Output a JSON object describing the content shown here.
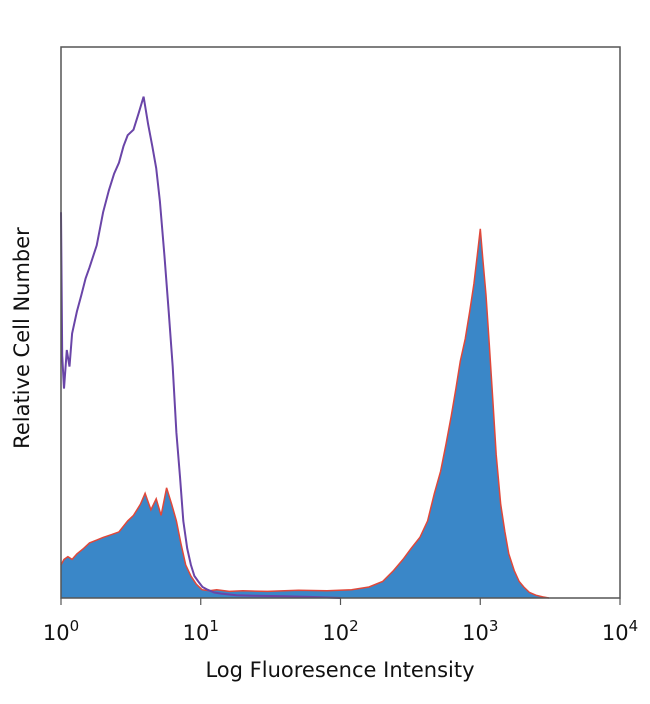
{
  "chart_data": {
    "type": "area",
    "title": "",
    "xlabel": "Log Fluoresence Intensity",
    "ylabel": "Relative Cell Number",
    "x_scale": "log",
    "xlim": [
      1,
      10000
    ],
    "ylim": [
      0,
      100
    ],
    "x_ticks": [
      {
        "base": "10",
        "exp": "0",
        "value": 1
      },
      {
        "base": "10",
        "exp": "1",
        "value": 10
      },
      {
        "base": "10",
        "exp": "2",
        "value": 100
      },
      {
        "base": "10",
        "exp": "3",
        "value": 1000
      },
      {
        "base": "10",
        "exp": "4",
        "value": 10000
      }
    ],
    "grid": false,
    "legend": "none",
    "series": [
      {
        "style": "filled",
        "fill_color": "#3a87c8",
        "outline_color": "#e0483a",
        "x": [
          1,
          1.05,
          1.12,
          1.2,
          1.3,
          1.45,
          1.6,
          1.8,
          2.0,
          2.3,
          2.6,
          3.0,
          3.3,
          3.7,
          4.0,
          4.4,
          4.8,
          5.2,
          5.7,
          6.2,
          6.7,
          7.2,
          7.8,
          8.5,
          9.3,
          10.2,
          11.5,
          13,
          16,
          20,
          30,
          50,
          80,
          120,
          160,
          200,
          240,
          280,
          320,
          370,
          420,
          470,
          520,
          570,
          620,
          670,
          720,
          780,
          840,
          900,
          960,
          1000,
          1040,
          1100,
          1160,
          1230,
          1300,
          1400,
          1500,
          1600,
          1750,
          1900,
          2050,
          2250,
          2500,
          2800,
          3100
        ],
        "y": [
          6,
          7,
          7.5,
          7,
          8,
          9,
          10,
          10.5,
          11,
          11.5,
          12,
          14,
          15,
          17,
          19,
          16,
          18,
          15,
          20,
          17,
          14,
          10,
          6,
          4,
          2.5,
          1.5,
          1.3,
          1.5,
          1.2,
          1.3,
          1.2,
          1.4,
          1.3,
          1.5,
          2,
          3,
          5,
          7,
          9,
          11,
          14,
          19,
          23,
          28,
          33,
          38,
          43,
          47,
          52,
          57,
          63,
          67,
          62,
          55,
          46,
          36,
          26,
          17,
          12,
          8,
          5,
          3,
          2,
          1,
          0.5,
          0.2,
          0
        ]
      },
      {
        "style": "line",
        "line_color": "#6a45a8",
        "x": [
          1,
          1.02,
          1.05,
          1.1,
          1.15,
          1.2,
          1.3,
          1.4,
          1.5,
          1.6,
          1.8,
          2.0,
          2.2,
          2.4,
          2.6,
          2.8,
          3.0,
          3.3,
          3.6,
          3.9,
          4.2,
          4.5,
          4.8,
          5.1,
          5.5,
          5.9,
          6.3,
          6.7,
          7.1,
          7.5,
          8.0,
          8.5,
          9.0,
          9.6,
          10.3,
          11.2,
          12.5,
          14,
          18,
          25,
          40,
          60,
          100
        ],
        "y": [
          70,
          44,
          38,
          45,
          42,
          48,
          52,
          55,
          58,
          60,
          64,
          70,
          74,
          77,
          79,
          82,
          84,
          85,
          88,
          91,
          86,
          82,
          78,
          72,
          62,
          52,
          42,
          30,
          22,
          14,
          9,
          6,
          4,
          3,
          2,
          1.5,
          1,
          0.8,
          0.5,
          0.4,
          0.3,
          0.2,
          0
        ]
      }
    ]
  }
}
